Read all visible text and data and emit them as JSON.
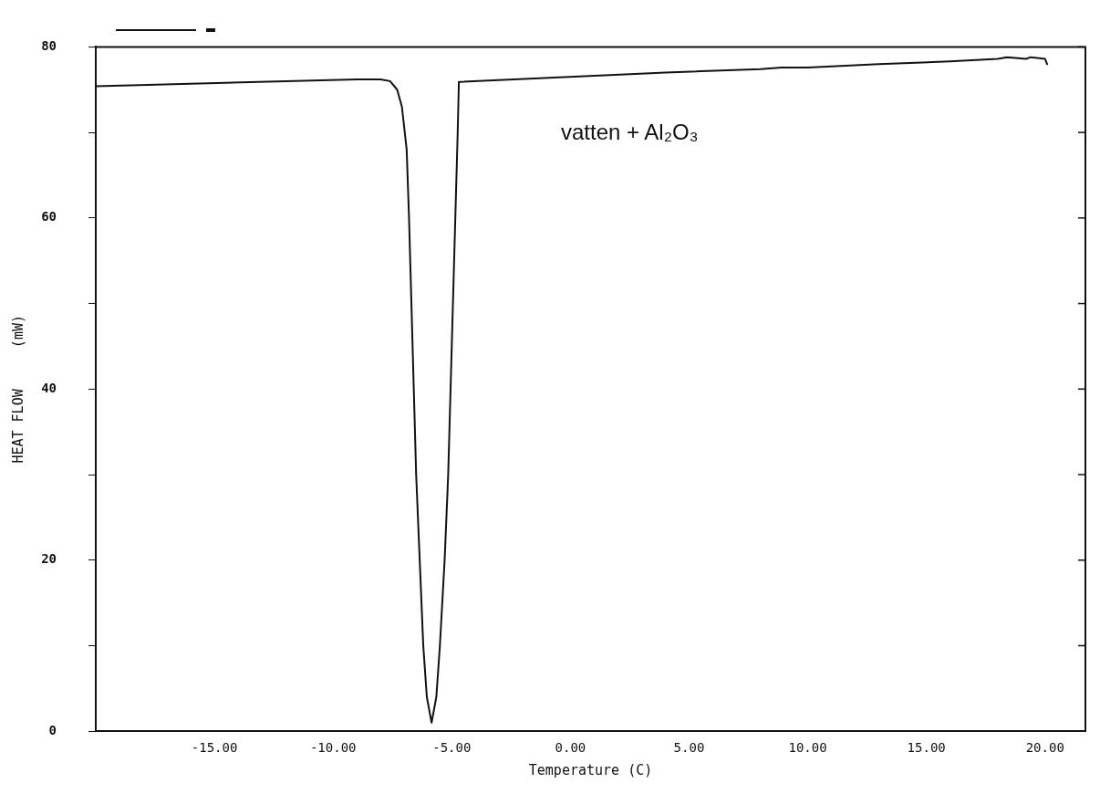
{
  "chart_data": {
    "type": "line",
    "xlabel": "Temperature (C)",
    "ylabel": "HEAT FLOW     (mW)",
    "annotations": [
      "vatten + Al₂O₃"
    ],
    "series": [
      {
        "color": "#111111",
        "x": [
          -20,
          -16,
          -12,
          -9,
          -8,
          -7.6,
          -7.3,
          -7.1,
          -6.9,
          -6.8,
          -6.7,
          -6.6,
          -6.5,
          -6.35,
          -6.2,
          -6.05,
          -5.85,
          -5.65,
          -5.5,
          -5.3,
          -5.15,
          -5.05,
          -4.95,
          -4.85,
          -4.75,
          -4.7,
          -0.9,
          4,
          8,
          8.9,
          10,
          13,
          16,
          18,
          18.4,
          19.2,
          19.4,
          20,
          20.1
        ],
        "values": [
          75.4,
          75.7,
          76,
          76.2,
          76.2,
          76,
          75,
          73,
          68,
          60,
          50,
          40,
          30,
          20,
          10,
          4,
          1,
          4,
          10,
          20,
          30,
          40,
          50,
          60,
          70,
          75.9,
          76.4,
          77,
          77.4,
          77.6,
          77.6,
          78,
          78.3,
          78.6,
          78.8,
          78.6,
          78.8,
          78.6,
          77.9
        ]
      }
    ],
    "xlim": [
      -20,
      21.7
    ],
    "ylim": [
      0,
      80
    ],
    "xticks": [
      {
        "value": -15,
        "label": "-15.00"
      },
      {
        "value": -10,
        "label": "-10.00"
      },
      {
        "value": -5,
        "label": "-5.00"
      },
      {
        "value": 0,
        "label": "0.00"
      },
      {
        "value": 5,
        "label": "5.00"
      },
      {
        "value": 10,
        "label": "10.00"
      },
      {
        "value": 15,
        "label": "15.00"
      },
      {
        "value": 20,
        "label": "20.00"
      }
    ],
    "yticks": [
      0,
      {
        "value": 10,
        "label": null
      },
      20,
      {
        "value": 30,
        "label": null
      },
      40,
      {
        "value": 50,
        "label": null
      },
      60,
      {
        "value": 70,
        "label": null
      },
      80
    ],
    "grid": false,
    "legend": false,
    "marker": "none",
    "line_style": "solid"
  }
}
